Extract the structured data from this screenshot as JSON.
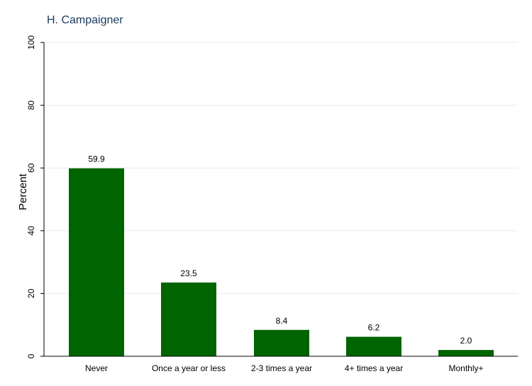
{
  "chart_data": {
    "type": "bar",
    "title": "H. Campaigner",
    "xlabel": "",
    "ylabel": "Percent",
    "categories": [
      "Never",
      "Once a year or less",
      "2-3 times a year",
      "4+ times a year",
      "Monthly+"
    ],
    "values": [
      59.9,
      23.5,
      8.4,
      6.2,
      2.0
    ],
    "value_labels": [
      "59.9",
      "23.5",
      "8.4",
      "6.2",
      "2.0"
    ],
    "ylim": [
      0,
      100
    ],
    "yticks": [
      0,
      20,
      40,
      60,
      80,
      100
    ],
    "ytick_labels": [
      "0",
      "20",
      "40",
      "60",
      "80",
      "100"
    ],
    "grid": true,
    "colors": {
      "bar": "#006400",
      "grid": "#e6ecf0",
      "axis": "#000000",
      "title": "#1a3a5c"
    }
  }
}
